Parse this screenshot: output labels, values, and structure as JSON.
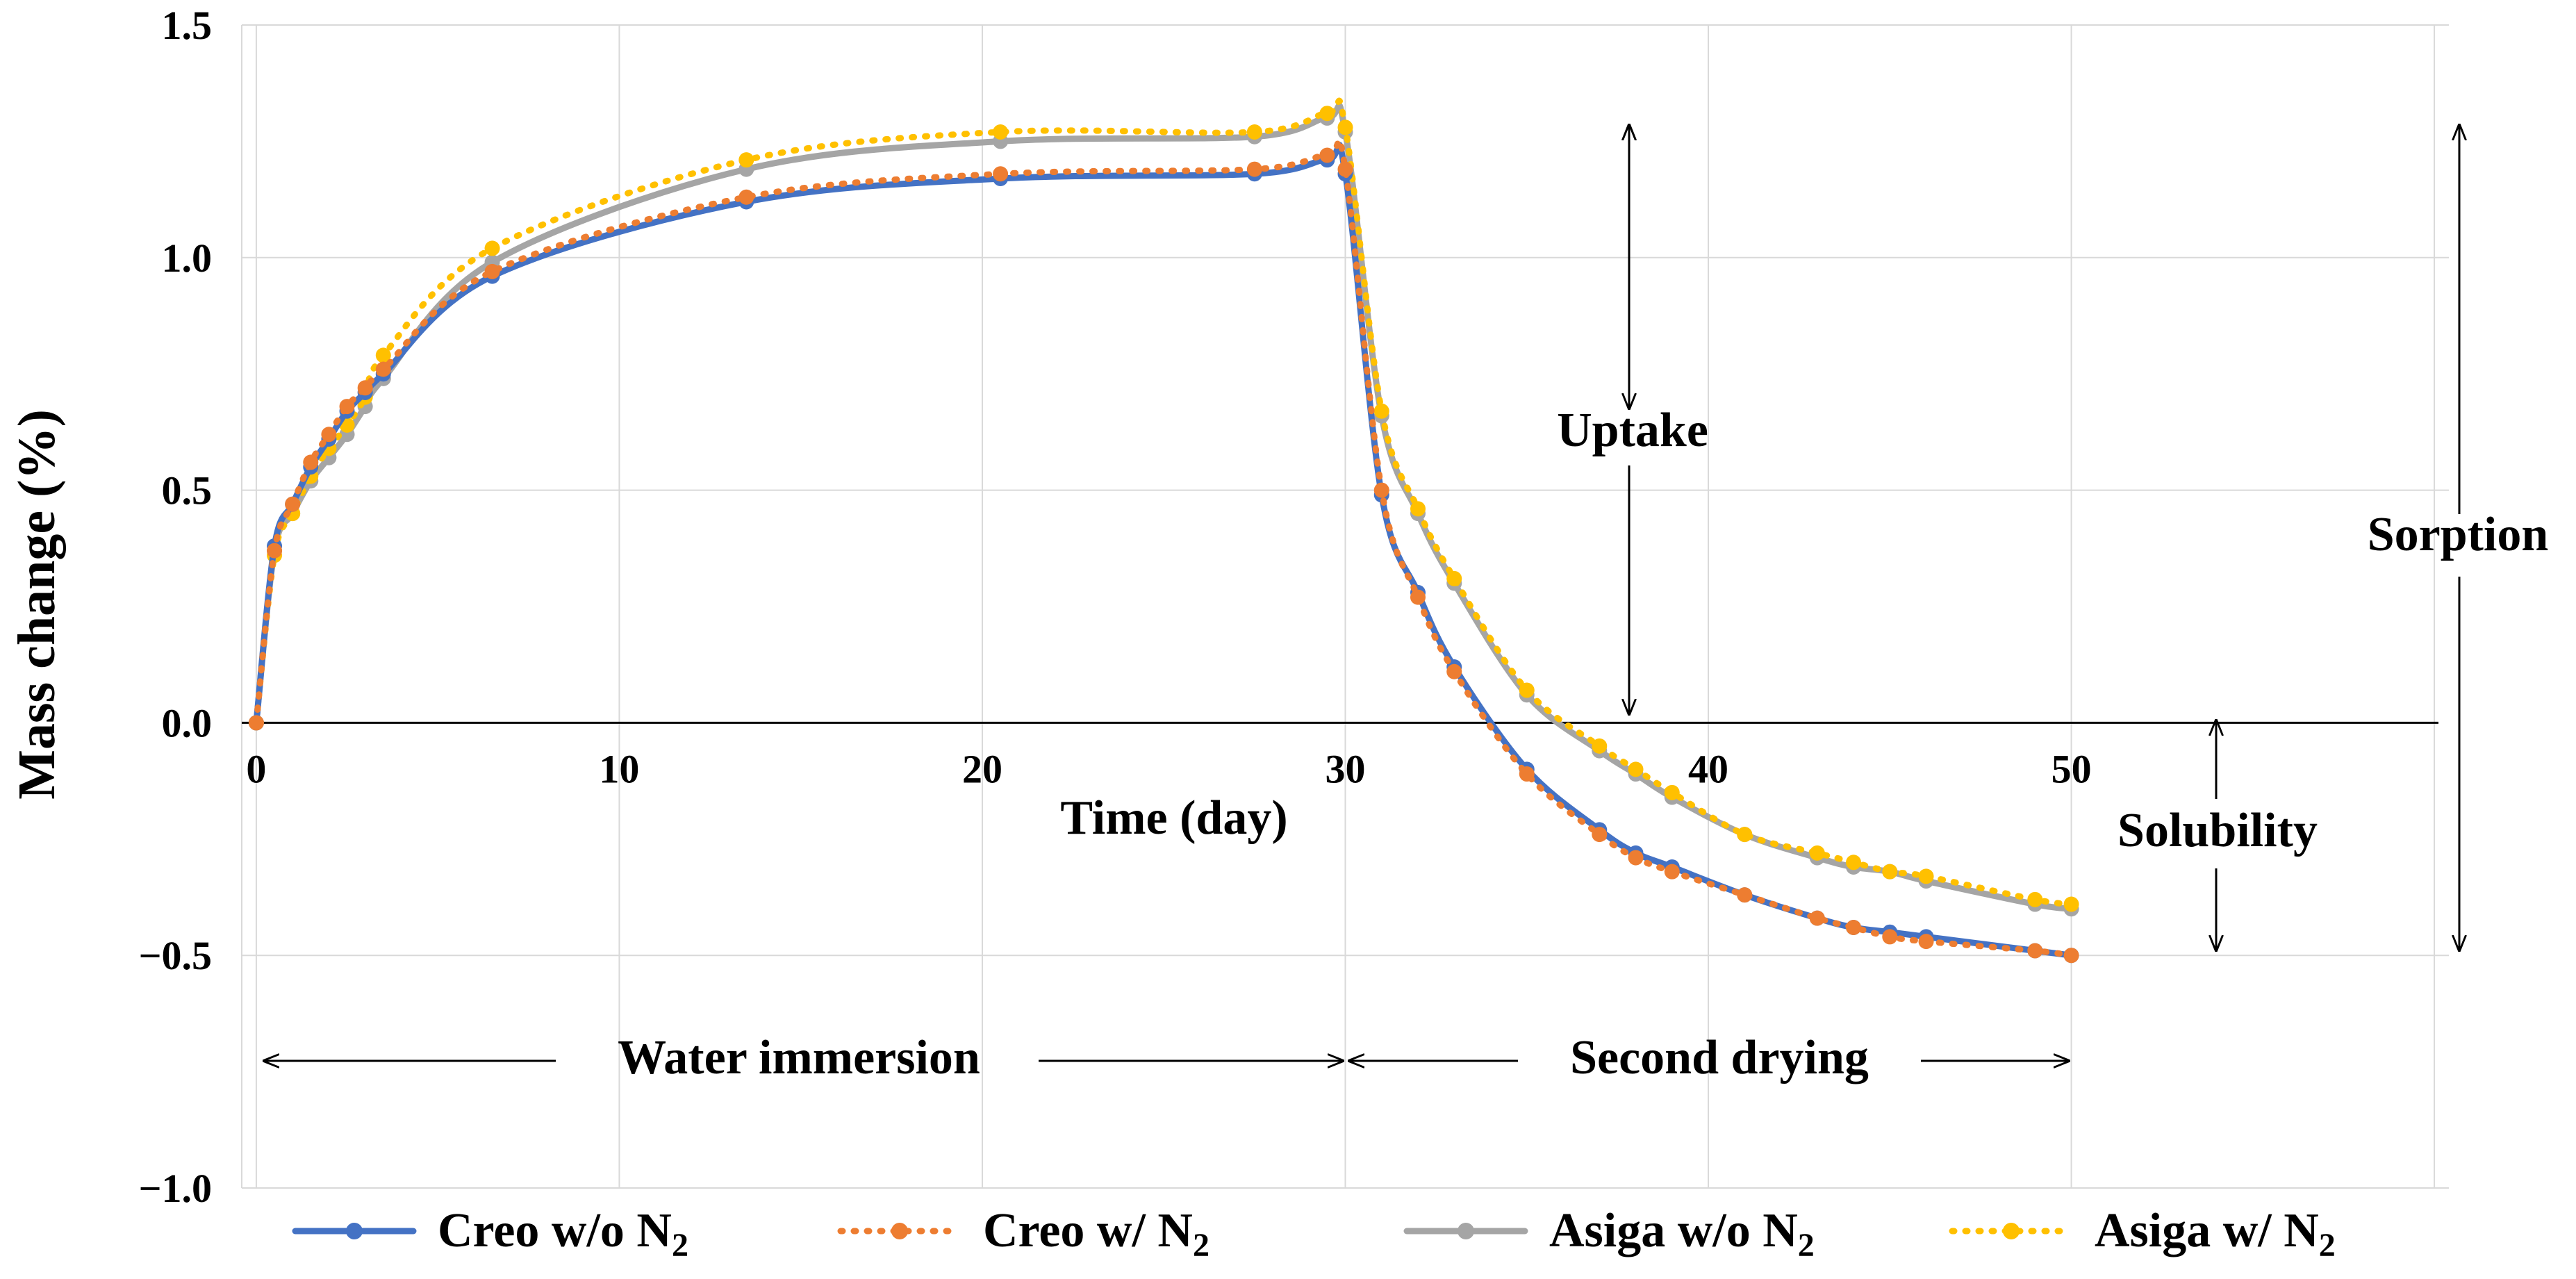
{
  "chart_data": {
    "type": "line",
    "xlabel": "Time (day)",
    "ylabel": "Mass change (%)",
    "xlim": [
      -0.4,
      60.4
    ],
    "ylim": [
      -1.0,
      1.5
    ],
    "x_ticks": [
      "0",
      "10",
      "20",
      "30",
      "40",
      "50"
    ],
    "x_tick_values": [
      0,
      10,
      20,
      30,
      40,
      50
    ],
    "y_ticks": [
      "1.5",
      "1.0",
      "0.5",
      "0.0",
      "−0.5",
      "−1.0"
    ],
    "y_tick_values": [
      1.5,
      1.0,
      0.5,
      0.0,
      -0.5,
      -1.0
    ],
    "grid": true,
    "legend_position": "bottom",
    "series": [
      {
        "name": "Creo w/o N",
        "subscript": "2",
        "color": "#4472C4",
        "dashed": false,
        "x": [
          0,
          0.5,
          1,
          1.5,
          2,
          2.5,
          3,
          3.5,
          6.5,
          13.5,
          20.5,
          27.5,
          29.5,
          30,
          31,
          32,
          33,
          35,
          37,
          38,
          39,
          41,
          43,
          44,
          45,
          46,
          49,
          50
        ],
        "y": [
          0,
          0.38,
          0.47,
          0.55,
          0.61,
          0.67,
          0.71,
          0.75,
          0.96,
          1.12,
          1.17,
          1.18,
          1.21,
          1.18,
          0.49,
          0.28,
          0.12,
          -0.1,
          -0.23,
          -0.28,
          -0.31,
          -0.37,
          -0.42,
          -0.44,
          -0.45,
          -0.46,
          -0.49,
          -0.5
        ]
      },
      {
        "name": "Creo w/ N",
        "subscript": "2",
        "color": "#ED7D31",
        "dashed": true,
        "x": [
          0,
          0.5,
          1,
          1.5,
          2,
          2.5,
          3,
          3.5,
          6.5,
          13.5,
          20.5,
          27.5,
          29.5,
          30,
          31,
          32,
          33,
          35,
          37,
          38,
          39,
          41,
          43,
          44,
          45,
          46,
          49,
          50
        ],
        "y": [
          0,
          0.37,
          0.47,
          0.56,
          0.62,
          0.68,
          0.72,
          0.76,
          0.97,
          1.13,
          1.18,
          1.19,
          1.22,
          1.19,
          0.5,
          0.27,
          0.11,
          -0.11,
          -0.24,
          -0.29,
          -0.32,
          -0.37,
          -0.42,
          -0.44,
          -0.46,
          -0.47,
          -0.49,
          -0.5
        ]
      },
      {
        "name": "Asiga w/o N",
        "subscript": "2",
        "color": "#A5A5A5",
        "dashed": false,
        "x": [
          0,
          0.5,
          1,
          1.5,
          2,
          2.5,
          3,
          3.5,
          6.5,
          13.5,
          20.5,
          27.5,
          29.5,
          30,
          31,
          32,
          33,
          35,
          37,
          38,
          39,
          41,
          43,
          44,
          45,
          46,
          49,
          50
        ],
        "y": [
          0,
          0.37,
          0.45,
          0.52,
          0.57,
          0.62,
          0.68,
          0.74,
          0.99,
          1.19,
          1.25,
          1.26,
          1.3,
          1.27,
          0.66,
          0.45,
          0.3,
          0.06,
          -0.06,
          -0.11,
          -0.16,
          -0.24,
          -0.29,
          -0.31,
          -0.32,
          -0.34,
          -0.39,
          -0.4
        ]
      },
      {
        "name": "Asiga w/ N",
        "subscript": "2",
        "color": "#FFC000",
        "dashed": true,
        "x": [
          0,
          0.5,
          1,
          1.5,
          2,
          2.5,
          3,
          3.5,
          6.5,
          13.5,
          20.5,
          27.5,
          29.5,
          30,
          31,
          32,
          33,
          35,
          37,
          38,
          39,
          41,
          43,
          44,
          45,
          46,
          49,
          50
        ],
        "y": [
          0,
          0.36,
          0.45,
          0.53,
          0.59,
          0.64,
          0.7,
          0.79,
          1.02,
          1.21,
          1.27,
          1.27,
          1.31,
          1.28,
          0.67,
          0.46,
          0.31,
          0.07,
          -0.05,
          -0.1,
          -0.15,
          -0.24,
          -0.28,
          -0.3,
          -0.32,
          -0.33,
          -0.38,
          -0.39
        ]
      }
    ],
    "annotations": {
      "uptake": "Uptake",
      "sorption": "Sorption",
      "solubility": "Solubility",
      "water_immersion": "Water immersion",
      "second_drying": "Second drying"
    }
  }
}
